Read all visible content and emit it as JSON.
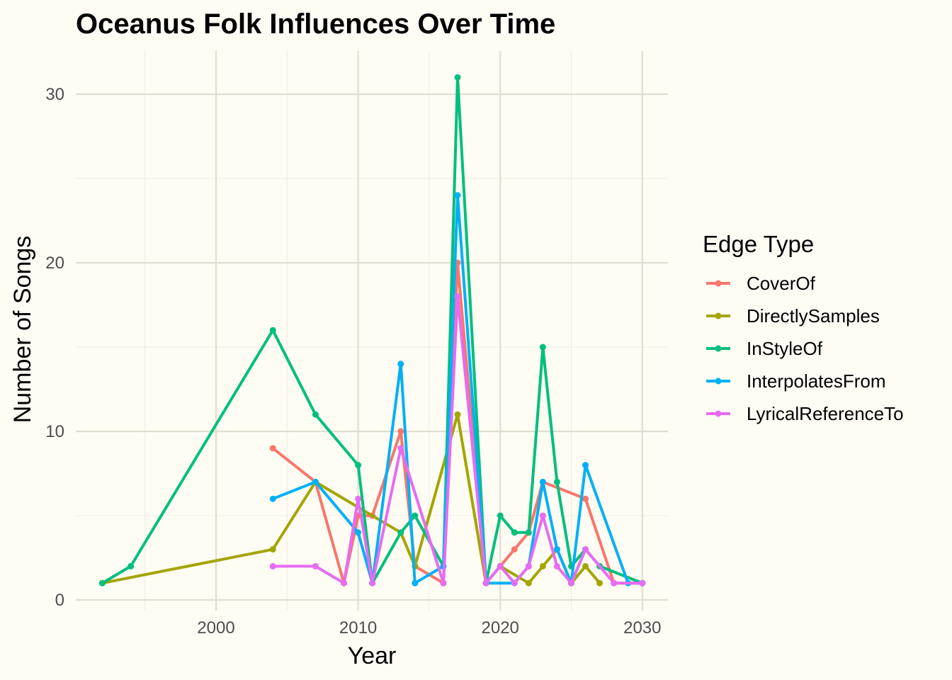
{
  "chart_data": {
    "type": "line",
    "title": "Oceanus Folk Influences Over Time",
    "xlabel": "Year",
    "ylabel": "Number of Songs",
    "xlim": [
      1991,
      2032
    ],
    "ylim": [
      0,
      32
    ],
    "x_ticks": [
      2000,
      2010,
      2020,
      2030
    ],
    "y_ticks": [
      0,
      10,
      20,
      30
    ],
    "grid": true,
    "legend": {
      "title": "Edge Type",
      "position": "right"
    },
    "series": [
      {
        "name": "CoverOf",
        "color": "#F8766D",
        "points": [
          [
            2004,
            9
          ],
          [
            2007,
            7
          ],
          [
            2009,
            1
          ],
          [
            2010,
            5
          ],
          [
            2011,
            5
          ],
          [
            2013,
            10
          ],
          [
            2014,
            2
          ],
          [
            2016,
            1
          ],
          [
            2017,
            20
          ],
          [
            2019,
            1
          ],
          [
            2020,
            2
          ],
          [
            2021,
            3
          ],
          [
            2022,
            4
          ],
          [
            2023,
            7
          ],
          [
            2026,
            6
          ],
          [
            2028,
            1
          ],
          [
            2029,
            1
          ],
          [
            2030,
            1
          ]
        ]
      },
      {
        "name": "DirectlySamples",
        "color": "#A3A500",
        "points": [
          [
            1992,
            1
          ],
          [
            2004,
            3
          ],
          [
            2007,
            7
          ],
          [
            2013,
            4
          ],
          [
            2014,
            2
          ],
          [
            2017,
            11
          ],
          [
            2019,
            1
          ],
          [
            2020,
            2
          ],
          [
            2022,
            1
          ],
          [
            2023,
            2
          ],
          [
            2024,
            3
          ],
          [
            2025,
            1
          ],
          [
            2026,
            2
          ],
          [
            2027,
            1
          ]
        ]
      },
      {
        "name": "InStyleOf",
        "color": "#00BF7D",
        "points": [
          [
            1992,
            1
          ],
          [
            1994,
            2
          ],
          [
            2004,
            16
          ],
          [
            2007,
            11
          ],
          [
            2010,
            8
          ],
          [
            2011,
            1
          ],
          [
            2013,
            4
          ],
          [
            2014,
            5
          ],
          [
            2016,
            2
          ],
          [
            2017,
            31
          ],
          [
            2019,
            1
          ],
          [
            2020,
            5
          ],
          [
            2021,
            4
          ],
          [
            2022,
            4
          ],
          [
            2023,
            15
          ],
          [
            2024,
            7
          ],
          [
            2025,
            2
          ],
          [
            2026,
            3
          ],
          [
            2027,
            2
          ],
          [
            2030,
            1
          ]
        ]
      },
      {
        "name": "InterpolatesFrom",
        "color": "#00B0F6",
        "points": [
          [
            2004,
            6
          ],
          [
            2007,
            7
          ],
          [
            2010,
            4
          ],
          [
            2011,
            1
          ],
          [
            2013,
            14
          ],
          [
            2014,
            1
          ],
          [
            2016,
            2
          ],
          [
            2017,
            24
          ],
          [
            2019,
            1
          ],
          [
            2021,
            1
          ],
          [
            2022,
            2
          ],
          [
            2023,
            7
          ],
          [
            2024,
            3
          ],
          [
            2025,
            1
          ],
          [
            2026,
            8
          ],
          [
            2029,
            1
          ],
          [
            2030,
            1
          ]
        ]
      },
      {
        "name": "LyricalReferenceTo",
        "color": "#E76BF3",
        "points": [
          [
            2004,
            2
          ],
          [
            2007,
            2
          ],
          [
            2009,
            1
          ],
          [
            2010,
            6
          ],
          [
            2011,
            1
          ],
          [
            2013,
            9
          ],
          [
            2016,
            1
          ],
          [
            2017,
            18
          ],
          [
            2019,
            1
          ],
          [
            2020,
            2
          ],
          [
            2021,
            1
          ],
          [
            2022,
            2
          ],
          [
            2023,
            5
          ],
          [
            2024,
            2
          ],
          [
            2025,
            1
          ],
          [
            2026,
            3
          ],
          [
            2028,
            1
          ],
          [
            2030,
            1
          ]
        ]
      }
    ]
  }
}
